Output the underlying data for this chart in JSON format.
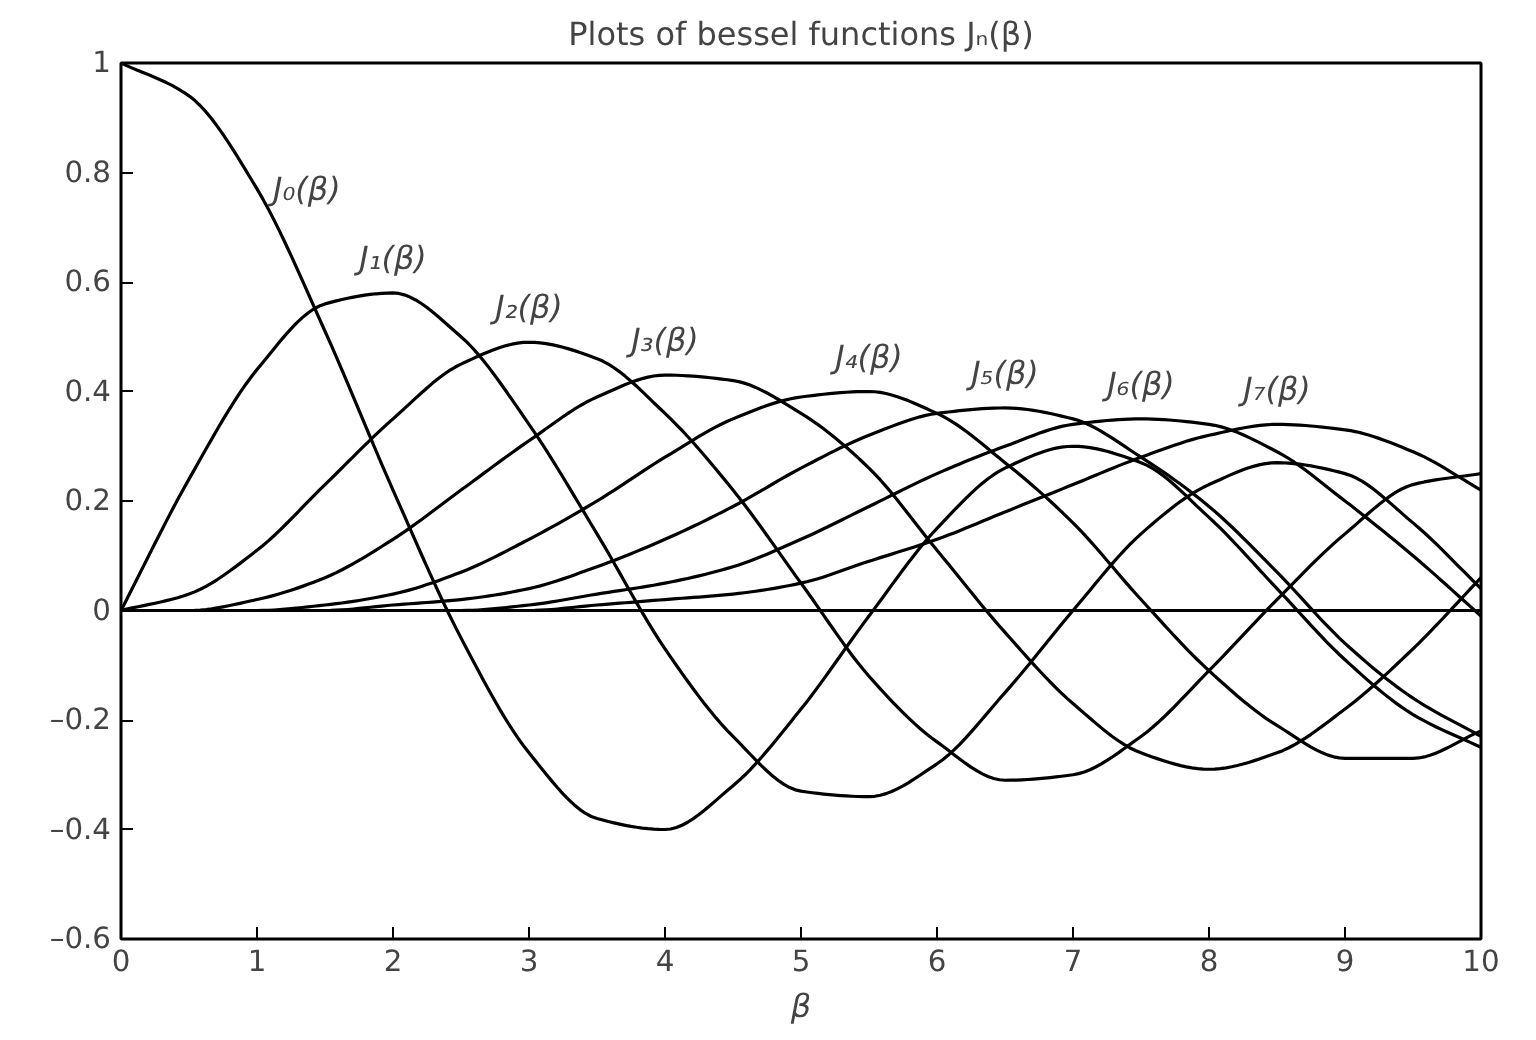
{
  "chart_data": {
    "type": "line",
    "title": "Plots of bessel functions Jₙ(β)",
    "xlabel": "β",
    "x": [
      0,
      0.5,
      1,
      1.5,
      2,
      2.5,
      3,
      3.5,
      4,
      4.5,
      5,
      5.5,
      6,
      6.5,
      7,
      7.5,
      8,
      8.5,
      9,
      9.5,
      10
    ],
    "series": [
      {
        "color": "#000000",
        "values": [
          1,
          0.94,
          0.77,
          0.51,
          0.22,
          -0.05,
          -0.26,
          -0.38,
          -0.4,
          -0.32,
          -0.18,
          -0.01,
          0.15,
          0.26,
          0.3,
          0.27,
          0.17,
          0.04,
          -0.09,
          -0.19,
          -0.25
        ]
      },
      {
        "color": "#000000",
        "values": [
          0,
          0.24,
          0.44,
          0.56,
          0.58,
          0.5,
          0.34,
          0.14,
          -0.07,
          -0.23,
          -0.33,
          -0.34,
          -0.28,
          -0.15,
          0,
          0.14,
          0.23,
          0.27,
          0.25,
          0.16,
          0.04
        ]
      },
      {
        "color": "#000000",
        "values": [
          0,
          0.03,
          0.11,
          0.23,
          0.35,
          0.45,
          0.49,
          0.46,
          0.36,
          0.22,
          0.05,
          -0.12,
          -0.24,
          -0.31,
          -0.3,
          -0.23,
          -0.11,
          0.02,
          0.14,
          0.23,
          0.25
        ]
      },
      {
        "color": "#000000",
        "values": [
          0,
          0,
          0.02,
          0.06,
          0.13,
          0.22,
          0.31,
          0.39,
          0.43,
          0.42,
          0.36,
          0.26,
          0.11,
          -0.04,
          -0.17,
          -0.26,
          -0.29,
          -0.26,
          -0.18,
          -0.07,
          0.06
        ]
      },
      {
        "color": "#000000",
        "values": [
          0,
          0,
          0,
          0.01,
          0.03,
          0.07,
          0.13,
          0.2,
          0.28,
          0.35,
          0.39,
          0.4,
          0.36,
          0.27,
          0.16,
          0.02,
          -0.11,
          -0.21,
          -0.27,
          -0.27,
          -0.22
        ]
      },
      {
        "color": "#000000",
        "values": [
          0,
          0,
          0,
          0,
          0.01,
          0.02,
          0.04,
          0.08,
          0.13,
          0.19,
          0.26,
          0.32,
          0.36,
          0.37,
          0.35,
          0.28,
          0.19,
          0.07,
          -0.06,
          -0.16,
          -0.23
        ]
      },
      {
        "color": "#000000",
        "values": [
          0,
          0,
          0,
          0,
          0,
          0,
          0.01,
          0.03,
          0.05,
          0.08,
          0.13,
          0.19,
          0.25,
          0.3,
          0.34,
          0.35,
          0.34,
          0.29,
          0.2,
          0.1,
          -0.01
        ]
      },
      {
        "color": "#000000",
        "values": [
          0,
          0,
          0,
          0,
          0,
          0,
          0,
          0.01,
          0.02,
          0.03,
          0.05,
          0.09,
          0.13,
          0.18,
          0.23,
          0.28,
          0.32,
          0.34,
          0.33,
          0.29,
          0.22
        ]
      }
    ],
    "annotations": [
      "J₀(β)",
      "J₁(β)",
      "J₂(β)",
      "J₃(β)",
      "J₄(β)",
      "J₅(β)",
      "J₆(β)",
      "J₇(β)"
    ],
    "ref_lines": [
      {
        "axis": "y",
        "value": 0
      }
    ],
    "xlim": [
      0,
      10
    ],
    "ylim": [
      -0.6,
      1
    ],
    "xticks": [
      0,
      1,
      2,
      3,
      4,
      5,
      6,
      7,
      8,
      9,
      10
    ],
    "yticks": [
      {
        "value": -0.6,
        "label": "–0.6"
      },
      {
        "value": -0.4,
        "label": "–0.4"
      },
      {
        "value": -0.2,
        "label": "–0.2"
      },
      0,
      0.2,
      0.4,
      0.6,
      0.8,
      1
    ],
    "grid": false,
    "line_style": "solid",
    "marker": "none"
  }
}
